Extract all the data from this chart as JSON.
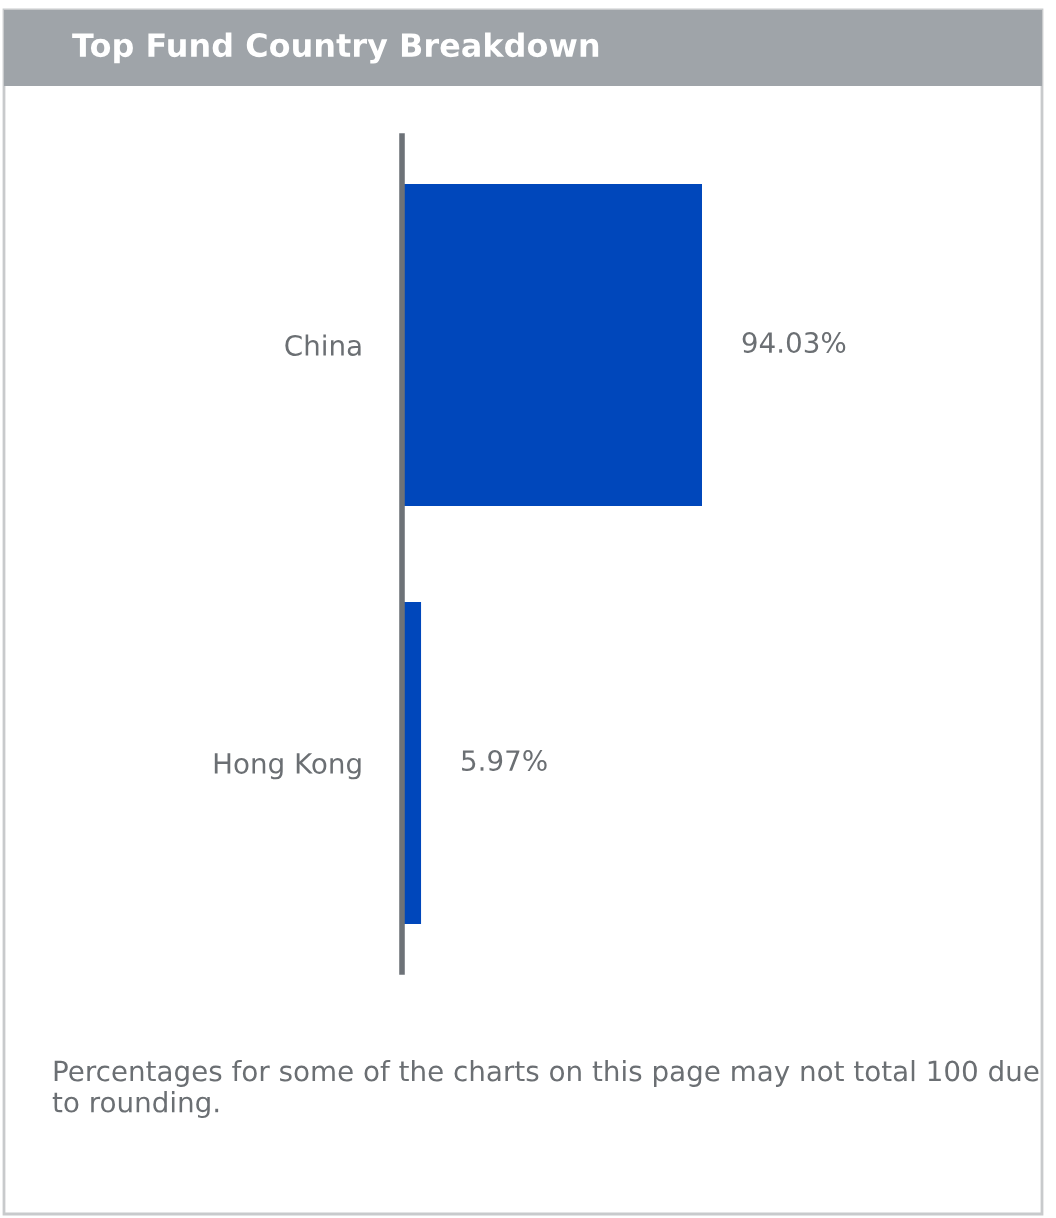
{
  "chart_data": {
    "type": "bar",
    "orientation": "horizontal",
    "title": "Top Fund Country Breakdown",
    "categories": [
      "China",
      "Hong Kong"
    ],
    "values": [
      94.03,
      5.97
    ],
    "color": "#0047bb",
    "value_labels": [
      "94.03%",
      "5.97%"
    ],
    "annotations": [
      "Percentages for some of the charts on this page may not total 100 due to rounding."
    ]
  }
}
